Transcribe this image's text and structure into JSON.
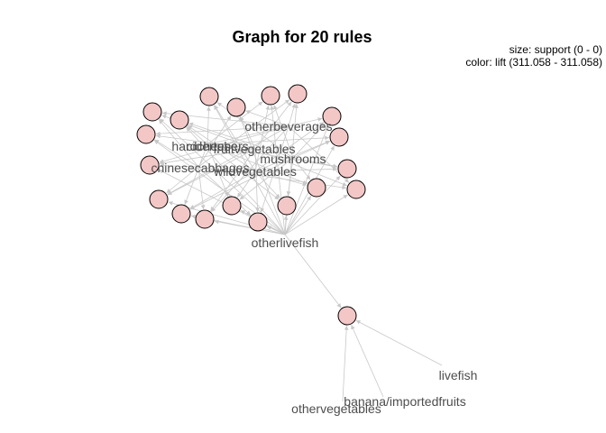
{
  "title": "Graph for 20 rules",
  "legend": {
    "size": "size: support (0 - 0)",
    "color": "color: lift (311.058 - 311.058)"
  },
  "labels": {
    "otherbeverages": "otherbeverages",
    "hardcheese": "hardcheese",
    "cidertubers": "cidertubers",
    "fruitvegetables": "fruitvegetables",
    "mushrooms": "mushrooms",
    "chinesecabbages": "chinesecabbages",
    "wildvegetables": "wildvegetables",
    "otherlivefish": "otherlivefish",
    "livefish": "livefish",
    "bananaimportedfruits": "banana/importedfruits",
    "othervegetables": "othervegetables"
  },
  "colors": {
    "node_fill": "#f4c7c7",
    "edge": "#c8c8c8",
    "label": "#4d4d4d"
  }
}
